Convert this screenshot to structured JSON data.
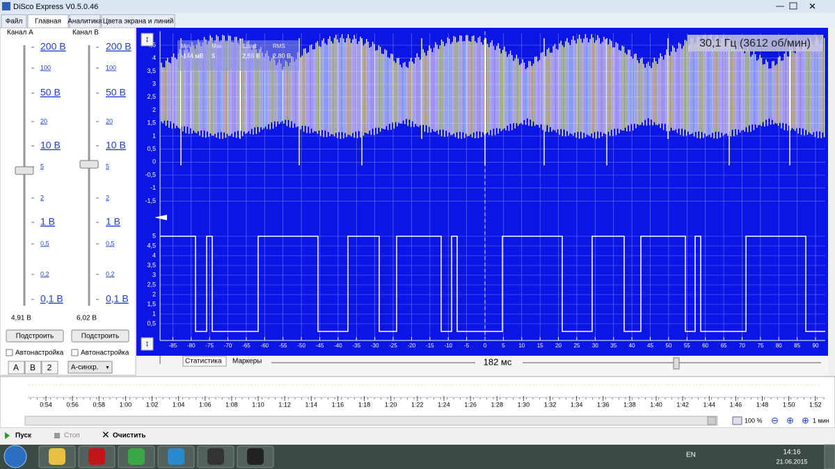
{
  "window": {
    "title": "DiSco Express V0.5.0.46"
  },
  "menu_tabs": [
    "Файл",
    "Главная",
    "Аналитика",
    "Цвета экрана и линий"
  ],
  "channel_a": {
    "label": "Канал A",
    "scale": [
      "200 В",
      "100",
      "50 В",
      "20",
      "10 В",
      "5",
      "2",
      "1 В",
      "0,5",
      "0,2",
      "0,1 В"
    ],
    "value": "4,91 В",
    "button": "Подстроить",
    "auto": "Автонастройка"
  },
  "channel_b": {
    "label": "Канал B",
    "scale": [
      "200 В",
      "100",
      "50 В",
      "20",
      "10 В",
      "5",
      "2",
      "1 В",
      "0,5",
      "0,2",
      "0,1 В"
    ],
    "value": "6,02 В",
    "button": "Подстроить",
    "auto": "Автонастройка"
  },
  "bottom_tabs": [
    "A",
    "B",
    "2"
  ],
  "sync": "А-синхр.",
  "scope": {
    "frequency": "30,1 Гц (3612 об/мин)",
    "stats": [
      {
        "name": "Min",
        "value": "-144 мВ"
      },
      {
        "name": "Max",
        "value": "5"
      },
      {
        "name": "Const",
        "value": "2,56 В"
      },
      {
        "name": "RMS",
        "value": "2,80 В"
      }
    ],
    "y_labels_a": [
      "4,5",
      "4",
      "3,5",
      "3",
      "2,5",
      "2",
      "1,5",
      "1",
      "0,5",
      "0",
      "-0,5",
      "-1",
      "-1,5"
    ],
    "y_labels_b": [
      "5",
      "4,5",
      "4",
      "3,5",
      "3",
      "2,5",
      "2",
      "1,5",
      "1",
      "0,5"
    ],
    "x_labels": [
      "-85",
      "-80",
      "-75",
      "-70",
      "-65",
      "-60",
      "-55",
      "-50",
      "-45",
      "-40",
      "-35",
      "-30",
      "-25",
      "-20",
      "-15",
      "-10",
      "-5",
      "0",
      "5",
      "10",
      "15",
      "20",
      "25",
      "30",
      "35",
      "40",
      "45",
      "50",
      "55",
      "60",
      "65",
      "70",
      "75",
      "80",
      "85",
      "90"
    ],
    "tabs": [
      "Статистика",
      "Маркеры"
    ],
    "timebase": "182 мс"
  },
  "timeline": {
    "labels": [
      "0:54",
      "0:56",
      "0:58",
      "1:00",
      "1:02",
      "1:04",
      "1:06",
      "1:08",
      "1:10",
      "1:12",
      "1:14",
      "1:16",
      "1:18",
      "1:20",
      "1:22",
      "1:24",
      "1:26",
      "1:28",
      "1:30",
      "1:32",
      "1:34",
      "1:36",
      "1:38",
      "1:40",
      "1:42",
      "1:44",
      "1:46",
      "1:48",
      "1:50",
      "1:52"
    ],
    "zoom": "100 %",
    "zoom_time": "1 мин"
  },
  "controls": [
    "Пуск",
    "Стоп",
    "Очистить"
  ],
  "taskbar": {
    "lang": "EN",
    "time": "14:16",
    "date": "21.06.2015"
  }
}
